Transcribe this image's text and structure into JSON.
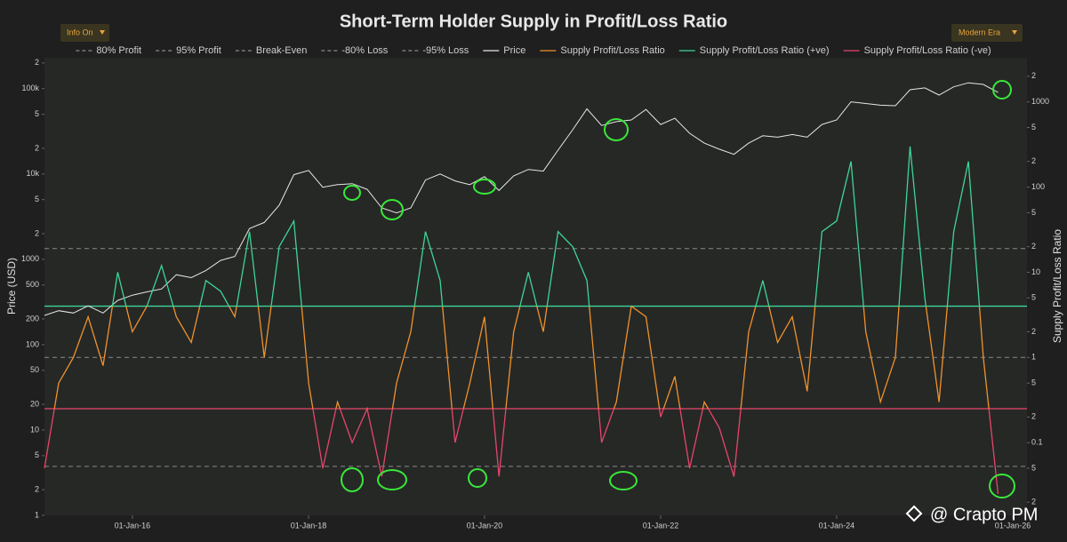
{
  "chart_data": {
    "type": "line",
    "title": "Short-Term Holder Supply in Profit/Loss Ratio",
    "controls": {
      "left": "Info On",
      "right": "Modern Era"
    },
    "ylabel": "Price (USD)",
    "y2label": "Supply Profit/Loss Ratio",
    "watermark": "@ Crapto PM",
    "log_scale": true,
    "x": [
      "2015-01-01",
      "2015-03-01",
      "2015-05-01",
      "2015-07-01",
      "2015-09-01",
      "2015-11-01",
      "2016-01-01",
      "2016-03-01",
      "2016-05-01",
      "2016-07-01",
      "2016-09-01",
      "2016-11-01",
      "2017-01-01",
      "2017-03-01",
      "2017-05-01",
      "2017-07-01",
      "2017-09-01",
      "2017-11-01",
      "2018-01-01",
      "2018-03-01",
      "2018-05-01",
      "2018-07-01",
      "2018-09-01",
      "2018-11-01",
      "2019-01-01",
      "2019-03-01",
      "2019-05-01",
      "2019-07-01",
      "2019-09-01",
      "2019-11-01",
      "2020-01-01",
      "2020-03-01",
      "2020-05-01",
      "2020-07-01",
      "2020-09-01",
      "2020-11-01",
      "2021-01-01",
      "2021-03-01",
      "2021-05-01",
      "2021-07-01",
      "2021-09-01",
      "2021-11-01",
      "2022-01-01",
      "2022-03-01",
      "2022-05-01",
      "2022-07-01",
      "2022-09-01",
      "2022-11-01",
      "2023-01-01",
      "2023-03-01",
      "2023-05-01",
      "2023-07-01",
      "2023-09-01",
      "2023-11-01",
      "2024-01-01",
      "2024-03-01",
      "2024-05-01",
      "2024-07-01",
      "2024-09-01",
      "2024-11-01",
      "2025-01-01",
      "2025-03-01",
      "2025-05-01",
      "2025-07-01",
      "2025-09-01",
      "2025-11-01"
    ],
    "xlim": [
      "2015-01-01",
      "2026-03-01"
    ],
    "xticks": [
      {
        "value": "2016-01-01",
        "label": "01-Jan-16"
      },
      {
        "value": "2018-01-01",
        "label": "01-Jan-18"
      },
      {
        "value": "2020-01-01",
        "label": "01-Jan-20"
      },
      {
        "value": "2022-01-01",
        "label": "01-Jan-22"
      },
      {
        "value": "2024-01-01",
        "label": "01-Jan-24"
      },
      {
        "value": "2026-01-01",
        "label": "01-Jan-26"
      }
    ],
    "ylim": [
      1,
      230000
    ],
    "yticks": [
      1,
      2,
      5,
      10,
      20,
      50,
      100,
      200,
      500,
      1000,
      {
        "value": 2000,
        "label": "2"
      },
      {
        "value": 5000,
        "label": "5"
      },
      {
        "value": 10000,
        "label": "10k"
      },
      {
        "value": 20000,
        "label": "2"
      },
      {
        "value": 50000,
        "label": "5"
      },
      {
        "value": 100000,
        "label": "100k"
      },
      {
        "value": 200000,
        "label": "2"
      }
    ],
    "y2lim": [
      0.014,
      3300
    ],
    "y2ticks": [
      {
        "value": 0.02,
        "label": "2"
      },
      {
        "value": 0.05,
        "label": "5"
      },
      0.1,
      {
        "value": 0.2,
        "label": "2"
      },
      {
        "value": 0.5,
        "label": "5"
      },
      1,
      {
        "value": 2,
        "label": "2"
      },
      {
        "value": 5,
        "label": "5"
      },
      10,
      {
        "value": 20,
        "label": "2"
      },
      {
        "value": 50,
        "label": "5"
      },
      100,
      {
        "value": 200,
        "label": "2"
      },
      {
        "value": 500,
        "label": "5"
      },
      1000,
      {
        "value": 2000,
        "label": "2"
      }
    ],
    "ref_lines": [
      {
        "name": "80% Profit",
        "value": 4,
        "color": "#3ed598",
        "dash": false
      },
      {
        "name": "95% Profit",
        "value": 19,
        "color": "#8a8a8a",
        "dash": true
      },
      {
        "name": "Break-Even",
        "value": 1,
        "color": "#8a8a8a",
        "dash": true
      },
      {
        "name": "-80% Loss",
        "value": 0.25,
        "color": "#e8456b",
        "dash": false
      },
      {
        "name": "-95% Loss",
        "value": 0.0526,
        "color": "#8a8a8a",
        "dash": true
      }
    ],
    "series": [
      {
        "name": "Price",
        "color": "#e6e6e6",
        "axis": "y",
        "values": [
          220,
          250,
          235,
          285,
          235,
          330,
          380,
          415,
          450,
          660,
          610,
          740,
          970,
          1080,
          2300,
          2700,
          4300,
          9800,
          11000,
          7000,
          7500,
          7700,
          6600,
          4000,
          3500,
          4000,
          8500,
          10000,
          8300,
          7500,
          9300,
          6400,
          9500,
          11300,
          10800,
          19000,
          33000,
          58000,
          37000,
          41000,
          43000,
          57000,
          38000,
          45000,
          30000,
          23000,
          19500,
          17000,
          23000,
          28000,
          27000,
          29000,
          27000,
          38000,
          43000,
          70000,
          67000,
          64000,
          63000,
          97000,
          102000,
          84000,
          105000,
          117000,
          112000,
          90000
        ]
      },
      {
        "name": "Supply Profit/Loss Ratio",
        "color": "#f0922b",
        "axis": "y2",
        "values": [
          0.05,
          0.5,
          1,
          3,
          0.8,
          10,
          2,
          4,
          12,
          3,
          1.5,
          8,
          6,
          3,
          30,
          1,
          20,
          40,
          0.5,
          0.05,
          0.3,
          0.1,
          0.25,
          0.04,
          0.5,
          2,
          30,
          8,
          0.1,
          0.5,
          3,
          0.04,
          2,
          10,
          2,
          30,
          20,
          8,
          0.1,
          0.3,
          4,
          3,
          0.2,
          0.6,
          0.05,
          0.3,
          0.15,
          0.04,
          2,
          8,
          1.5,
          3,
          0.4,
          30,
          40,
          200,
          2,
          0.3,
          1,
          300,
          5,
          0.3,
          30,
          200,
          1,
          0.025
        ]
      }
    ],
    "bands": [
      {
        "name": "Supply Profit/Loss Ratio (+ve)",
        "color": "#3ed598",
        "above": 4
      },
      {
        "name": "Supply Profit/Loss Ratio (-ve)",
        "color": "#e8456b",
        "below": 0.25
      }
    ]
  }
}
